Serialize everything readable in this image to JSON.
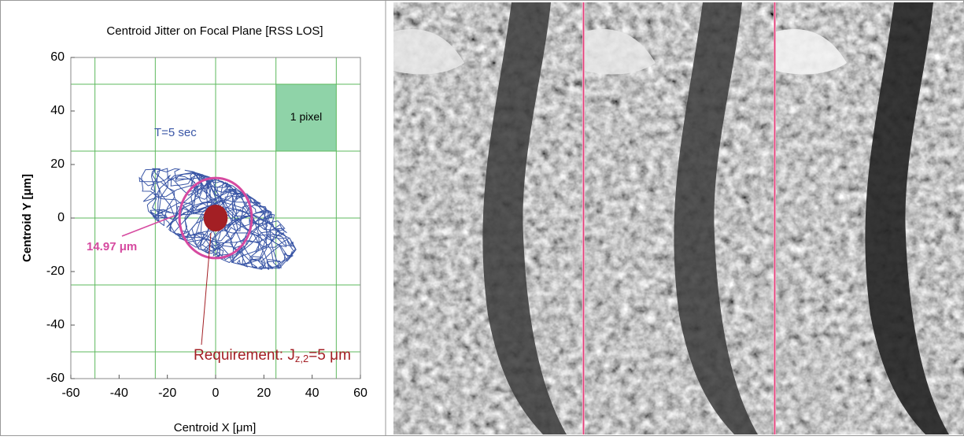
{
  "chart_data": {
    "type": "jitter",
    "title": "Centroid Jitter on Focal Plane [RSS LOS]",
    "x_label": "Centroid X [μm]",
    "y_label": "Centroid Y [μm]",
    "xlim": [
      -60,
      60
    ],
    "ylim": [
      -60,
      60
    ],
    "xticks": [
      -60,
      -40,
      -20,
      0,
      20,
      40,
      60
    ],
    "yticks": [
      -60,
      -40,
      -20,
      0,
      20,
      40,
      60
    ],
    "grid_lines": [
      -50,
      -25,
      0,
      25,
      50
    ],
    "grid_color": "#5cb85c",
    "trace_label": "T=5 sec",
    "trace_color": "#3a56a6",
    "pixel_box": {
      "label": "1 pixel",
      "x": [
        25,
        50
      ],
      "y": [
        25,
        50
      ],
      "color": "#8fd3a8"
    },
    "rss_circle": {
      "label": "14.97 μm",
      "radius": 14.97,
      "color": "#d64aa0"
    },
    "requirement": {
      "label_prefix": "Requirement: J",
      "label_subscript": "z,2",
      "label_suffix": "=5 μm",
      "radius": 5,
      "color": "#a31f24"
    }
  }
}
